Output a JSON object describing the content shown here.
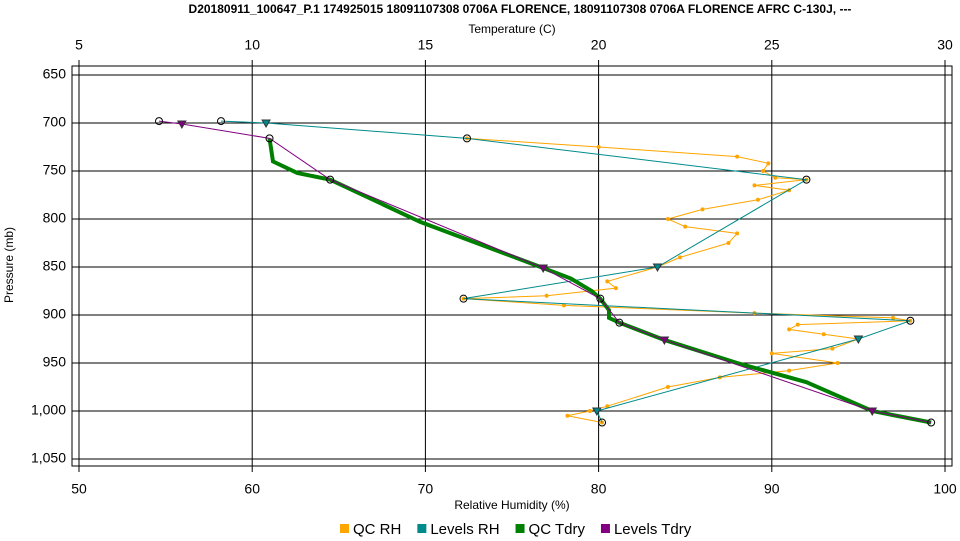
{
  "chart_data": {
    "type": "profile",
    "title": "D20180911_100647_P.1 174925015 18091107308 0706A FLORENCE, 18091107308 0706A FLORENCE AFRC C-130J, ---",
    "x_label": "Relative Humidity (%)",
    "x2_label": "Temperature (C)",
    "y_label": "Pressure (mb)",
    "xlim": [
      50,
      100
    ],
    "xticks": [
      50,
      60,
      70,
      80,
      90,
      100
    ],
    "x2lim": [
      5,
      30
    ],
    "x2ticks": [
      5,
      10,
      15,
      20,
      25,
      30
    ],
    "ylim": [
      650,
      1050
    ],
    "y_inverted": true,
    "yticks": [
      650,
      700,
      750,
      800,
      850,
      900,
      950,
      {
        "value": 1000,
        "label": "1,000"
      },
      {
        "value": 1050,
        "label": "1,050"
      }
    ],
    "grid": true,
    "legend": "bottom",
    "series": [
      {
        "name": "QC RH",
        "color": "#ffa500",
        "axis": "x",
        "style": "dots",
        "x": [
          72.4,
          80,
          88,
          89.8,
          89.5,
          90.2,
          92,
          89,
          91,
          89.2,
          86,
          84,
          85,
          88,
          87.5,
          84.7,
          83.4,
          80.5,
          81,
          77,
          72.2,
          78,
          89,
          97,
          98,
          91.5,
          91,
          93,
          95,
          93.5,
          90,
          93.8,
          91,
          87,
          84,
          80.5,
          79.5,
          78.2,
          80.2
        ],
        "y": [
          716,
          725,
          735,
          742,
          750,
          757,
          759,
          765,
          770,
          780,
          790,
          800,
          808,
          815,
          825,
          840,
          850,
          865,
          872,
          880,
          883,
          890,
          898,
          903,
          906,
          910,
          915,
          920,
          925,
          935,
          940,
          950,
          958,
          965,
          975,
          995,
          1000,
          1005,
          1012
        ]
      },
      {
        "name": "Levels RH",
        "color": "#008b8b",
        "axis": "x",
        "style": "markers",
        "x": [
          58.2,
          60.8,
          72.4,
          92,
          83.4,
          72.2,
          98,
          95,
          79.9,
          80.2
        ],
        "y": [
          698,
          700,
          716,
          759,
          850,
          883,
          906,
          925,
          1000,
          1012
        ],
        "markers": [
          "circle",
          "triangle",
          "circle",
          "circle",
          "triangle",
          "circle",
          "circle",
          "triangle",
          "triangle",
          "circle"
        ]
      },
      {
        "name": "QC Tdry",
        "color": "#008000",
        "axis": "x2",
        "style": "thick",
        "x": [
          10.5,
          10.6,
          11.3,
          12.25,
          14.85,
          18.4,
          19.2,
          19.8,
          20.05,
          20.3,
          20.3,
          20.6,
          21.9,
          24,
          26,
          27.9,
          29.6
        ],
        "y": [
          716,
          740,
          752,
          759,
          803,
          851,
          862,
          875,
          883,
          895,
          903,
          908,
          926,
          950,
          970,
          1000,
          1012
        ]
      },
      {
        "name": "Levels Tdry",
        "color": "#800080",
        "axis": "x2",
        "style": "markers",
        "x": [
          7.31,
          7.97,
          10.5,
          12.25,
          18.4,
          20.05,
          20.6,
          21.9,
          27.9,
          29.6
        ],
        "y": [
          698,
          701,
          716,
          759,
          851,
          883,
          908,
          926,
          1000,
          1012
        ],
        "markers": [
          "circle",
          "triangle",
          "circle",
          "circle",
          "triangle",
          "circle",
          "circle",
          "triangle",
          "triangle",
          "circle"
        ]
      }
    ]
  }
}
